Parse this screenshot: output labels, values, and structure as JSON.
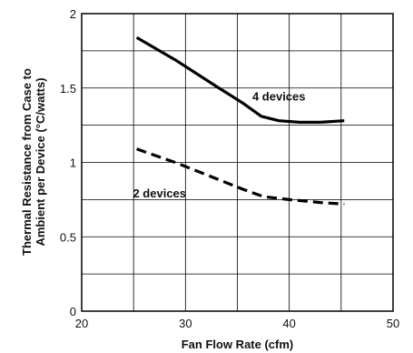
{
  "chart_data": {
    "type": "line",
    "title": "",
    "xlabel": "Fan Flow Rate (cfm)",
    "ylabel_lines": [
      "Thermal Resistance from Case to",
      "Ambient per Device (°C/watts)"
    ],
    "xlim": [
      20,
      50
    ],
    "ylim": [
      0,
      2
    ],
    "xticks": [
      20,
      30,
      40,
      50
    ],
    "xtick_labels": [
      "20",
      "30",
      "40",
      "50"
    ],
    "yticks": [
      0,
      0.5,
      1,
      1.5,
      2
    ],
    "ytick_labels": [
      "0",
      "0.5",
      "1",
      "1.5",
      "2"
    ],
    "grid": true,
    "grid_color": "#000000",
    "legend": "none",
    "series": [
      {
        "name": "4 devices",
        "style": "solid",
        "color": "#000000",
        "x": [
          25.3,
          29,
          33,
          35.5,
          37.3,
          39,
          41,
          43,
          45.3
        ],
        "y": [
          1.84,
          1.69,
          1.51,
          1.4,
          1.31,
          1.28,
          1.27,
          1.27,
          1.28
        ],
        "label_at": [
          39,
          1.44
        ]
      },
      {
        "name": "2 devices",
        "style": "dashed",
        "color": "#000000",
        "x": [
          25.3,
          29,
          33,
          35.5,
          37.5,
          40,
          43,
          45.3
        ],
        "y": [
          1.09,
          1.0,
          0.89,
          0.82,
          0.77,
          0.75,
          0.73,
          0.72
        ],
        "label_at": [
          27.5,
          0.79
        ]
      }
    ]
  }
}
